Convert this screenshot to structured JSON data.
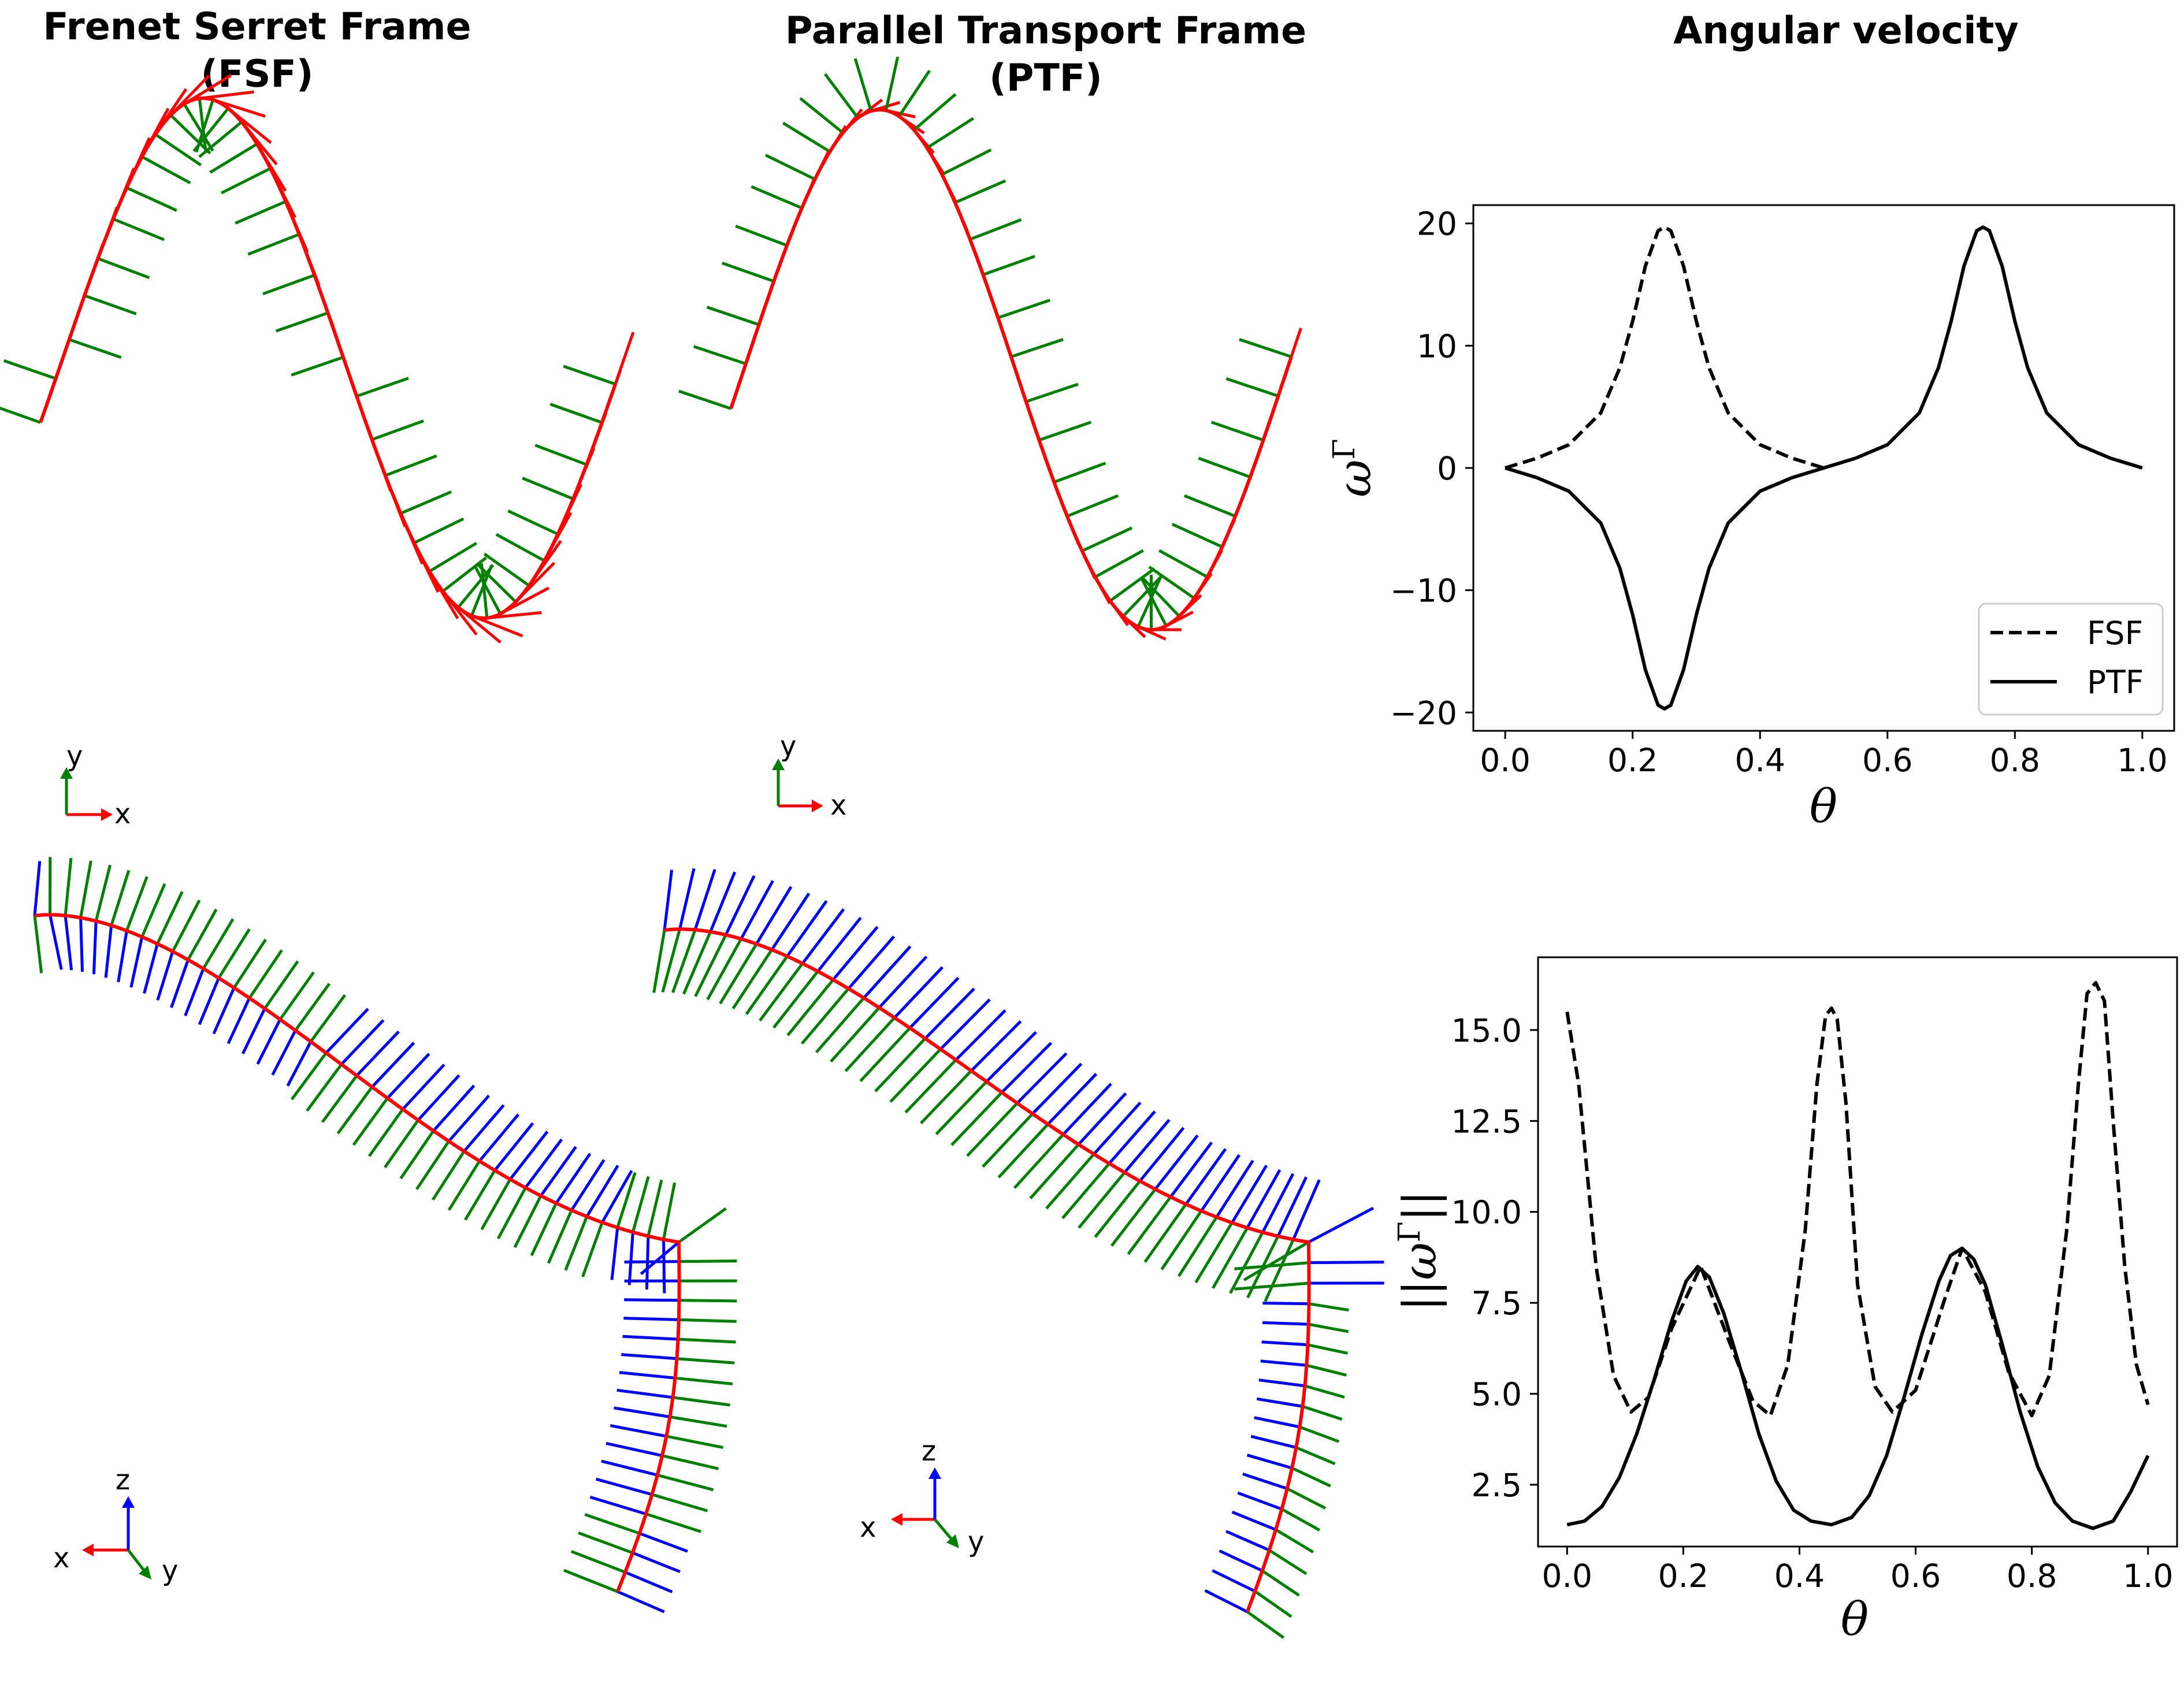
{
  "titles": {
    "fsf": [
      "Frenet Serret Frame",
      "(FSF)"
    ],
    "ptf": [
      "Parallel Transport Frame",
      "(PTF)"
    ],
    "angular": "Angular velocity"
  },
  "colors": {
    "tangent": "#ff0000",
    "normal": "#008000",
    "binormal": "#0000ff",
    "line": "#000000"
  },
  "triads": {
    "fsf_2d": {
      "x": "x",
      "y": "y"
    },
    "ptf_2d": {
      "x": "x",
      "y": "y"
    },
    "fsf_3d": {
      "x": "x",
      "y": "y",
      "z": "z"
    },
    "ptf_3d": {
      "x": "x",
      "y": "y",
      "z": "z"
    }
  },
  "chart_data": [
    {
      "type": "line",
      "xlabel": "θ",
      "ylabel": "ω^Γ",
      "xlim": [
        -0.05,
        1.05
      ],
      "ylim": [
        -21.5,
        21.5
      ],
      "xticks": [
        "0.0",
        "0.2",
        "0.4",
        "0.6",
        "0.8",
        "1.0"
      ],
      "yticks": [
        "−20",
        "−10",
        "0",
        "10",
        "20"
      ],
      "ytick_values": [
        -20,
        -10,
        0,
        10,
        20
      ],
      "legend": {
        "location": "lower right",
        "entries": [
          "FSF",
          "PTF"
        ]
      },
      "series": [
        {
          "name": "FSF",
          "style": "dashed",
          "x": [
            0.0,
            0.05,
            0.1,
            0.15,
            0.18,
            0.2,
            0.22,
            0.24,
            0.25,
            0.26,
            0.28,
            0.3,
            0.32,
            0.35,
            0.4,
            0.45,
            0.5
          ],
          "y": [
            0.0,
            0.8,
            1.9,
            4.5,
            8.2,
            12.0,
            16.5,
            19.4,
            19.7,
            19.4,
            16.5,
            12.0,
            8.2,
            4.5,
            1.9,
            0.8,
            0.0
          ]
        },
        {
          "name": "PTF",
          "style": "solid",
          "x": [
            0.0,
            0.05,
            0.1,
            0.15,
            0.18,
            0.2,
            0.22,
            0.24,
            0.25,
            0.26,
            0.28,
            0.3,
            0.32,
            0.35,
            0.4,
            0.45,
            0.5,
            0.55,
            0.6,
            0.65,
            0.68,
            0.7,
            0.72,
            0.74,
            0.75,
            0.76,
            0.78,
            0.8,
            0.82,
            0.85,
            0.9,
            0.95,
            1.0
          ],
          "y": [
            0.0,
            -0.8,
            -1.9,
            -4.5,
            -8.2,
            -12.0,
            -16.5,
            -19.4,
            -19.7,
            -19.4,
            -16.5,
            -12.0,
            -8.2,
            -4.5,
            -1.9,
            -0.8,
            0.0,
            0.8,
            1.9,
            4.5,
            8.2,
            12.0,
            16.5,
            19.4,
            19.7,
            19.4,
            16.5,
            12.0,
            8.2,
            4.5,
            1.9,
            0.8,
            0.0
          ]
        }
      ]
    },
    {
      "type": "line",
      "xlabel": "θ",
      "ylabel": "||ω^Γ||",
      "xlim": [
        -0.05,
        1.05
      ],
      "ylim": [
        0.8,
        17.0
      ],
      "xticks": [
        "0.0",
        "0.2",
        "0.4",
        "0.6",
        "0.8",
        "1.0"
      ],
      "yticks": [
        "2.5",
        "5.0",
        "7.5",
        "10.0",
        "12.5",
        "15.0"
      ],
      "ytick_values": [
        2.5,
        5.0,
        7.5,
        10.0,
        12.5,
        15.0
      ],
      "series": [
        {
          "name": "FSF",
          "style": "dashed",
          "x": [
            0.0,
            0.02,
            0.05,
            0.08,
            0.11,
            0.14,
            0.18,
            0.23,
            0.28,
            0.32,
            0.35,
            0.38,
            0.41,
            0.43,
            0.445,
            0.455,
            0.465,
            0.48,
            0.5,
            0.53,
            0.56,
            0.6,
            0.65,
            0.68,
            0.72,
            0.76,
            0.8,
            0.83,
            0.86,
            0.88,
            0.895,
            0.91,
            0.925,
            0.94,
            0.96,
            0.98,
            1.0
          ],
          "y": [
            15.5,
            13.5,
            8.5,
            5.5,
            4.5,
            4.9,
            6.8,
            8.5,
            6.4,
            4.8,
            4.4,
            5.8,
            9.5,
            13.5,
            15.4,
            15.6,
            15.3,
            13.0,
            8.0,
            5.2,
            4.5,
            5.1,
            7.6,
            9.0,
            7.8,
            5.6,
            4.4,
            5.5,
            9.5,
            13.5,
            16.0,
            16.3,
            15.8,
            12.5,
            8.5,
            5.8,
            4.7
          ]
        },
        {
          "name": "PTF",
          "style": "solid",
          "x": [
            0.0,
            0.03,
            0.06,
            0.09,
            0.12,
            0.15,
            0.18,
            0.205,
            0.225,
            0.245,
            0.27,
            0.3,
            0.33,
            0.36,
            0.39,
            0.42,
            0.455,
            0.49,
            0.52,
            0.55,
            0.58,
            0.61,
            0.64,
            0.66,
            0.68,
            0.7,
            0.72,
            0.75,
            0.78,
            0.81,
            0.84,
            0.87,
            0.905,
            0.94,
            0.97,
            1.0
          ],
          "y": [
            1.4,
            1.5,
            1.9,
            2.7,
            3.9,
            5.4,
            7.0,
            8.1,
            8.5,
            8.2,
            7.2,
            5.6,
            3.9,
            2.6,
            1.8,
            1.5,
            1.4,
            1.6,
            2.2,
            3.3,
            4.9,
            6.6,
            8.1,
            8.8,
            9.0,
            8.7,
            8.0,
            6.3,
            4.5,
            3.0,
            2.0,
            1.5,
            1.3,
            1.5,
            2.3,
            3.3
          ]
        }
      ]
    }
  ]
}
